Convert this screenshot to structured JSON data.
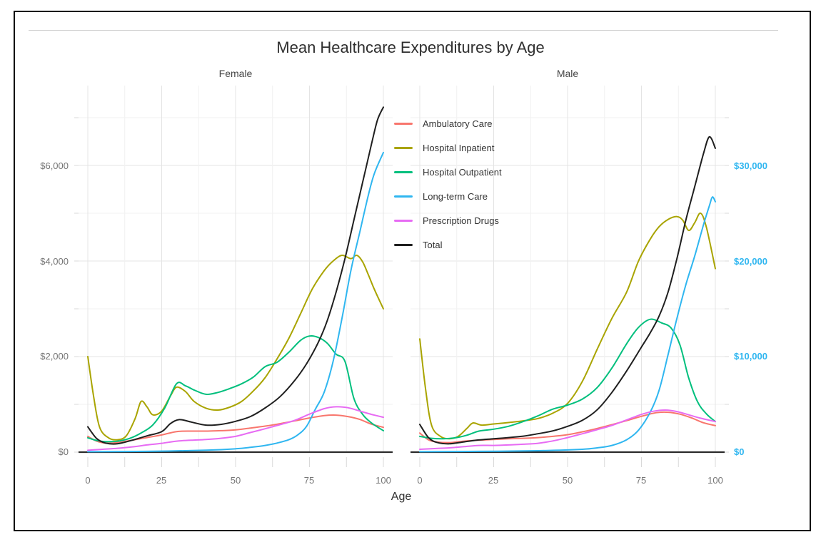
{
  "figure": {
    "title": "Mean Healthcare Expenditures by Age",
    "facet_female": "Female",
    "facet_male": "Male"
  },
  "chart_data": {
    "type": "line",
    "title": "Mean Healthcare Expenditures by Age",
    "xlabel": "Age",
    "grid": "on",
    "legend_position": "center-between-facets",
    "x_range": [
      -3.2,
      103.2
    ],
    "x_tick_labels": [
      "0",
      "25",
      "50",
      "75",
      "100"
    ],
    "x_ticks_major": [
      0,
      25,
      50,
      75,
      100
    ],
    "x_ticks_minor": [
      12.5,
      37.5,
      62.5,
      87.5
    ],
    "left_axis": {
      "range": [
        0,
        7700
      ],
      "ticks": [
        {
          "value": 0,
          "label": "$0"
        },
        {
          "value": 2000,
          "label": "$2,000"
        },
        {
          "value": 4000,
          "label": "$4,000"
        },
        {
          "value": 6000,
          "label": "$6,000"
        }
      ],
      "minor_values": [
        1000,
        3000,
        5000,
        7000
      ],
      "label_color": "#757575"
    },
    "right_axis": {
      "range": [
        0,
        38500
      ],
      "scale_vs_left": 5,
      "color": "#2fb6f0",
      "ticks": [
        {
          "value": 0,
          "label": "$0"
        },
        {
          "value": 10000,
          "label": "$10,000"
        },
        {
          "value": 20000,
          "label": "$20,000"
        },
        {
          "value": 30000,
          "label": "$30,000"
        }
      ]
    },
    "style": {
      "grid_major": "#e4e4e4",
      "grid_minor": "#f1f1f1",
      "axis_line": "#2b2b2b",
      "tick_color": "#d9d9d9"
    },
    "series_meta": [
      {
        "key": "amb",
        "name": "Ambulatory Care",
        "color": "#F8766D",
        "axis": "left"
      },
      {
        "key": "inpt",
        "name": "Hospital Inpatient",
        "color": "#A9A400",
        "axis": "left"
      },
      {
        "key": "outp",
        "name": "Hospital Outpatient",
        "color": "#00BF7D",
        "axis": "left"
      },
      {
        "key": "ltc",
        "name": "Long-term Care",
        "color": "#2fb6f0",
        "axis": "right"
      },
      {
        "key": "rx",
        "name": "Prescription Drugs",
        "color": "#E76BF3",
        "axis": "left"
      },
      {
        "key": "total",
        "name": "Total",
        "color": "#1f1f1f",
        "axis": "left"
      }
    ],
    "facets": [
      {
        "name": "Female",
        "series": {
          "amb": {
            "x": [
              0,
              3,
              6,
              10,
              15,
              20,
              25,
              30,
              35,
              40,
              45,
              50,
              55,
              60,
              65,
              70,
              75,
              80,
              84,
              88,
              92,
              96,
              100
            ],
            "y": [
              330,
              230,
              190,
              200,
              250,
              305,
              360,
              430,
              440,
              440,
              450,
              465,
              505,
              545,
              595,
              655,
              715,
              765,
              775,
              745,
              685,
              585,
              520
            ]
          },
          "inpt": {
            "x": [
              0,
              2,
              4,
              7,
              10,
              13,
              16,
              18,
              20,
              22,
              25,
              28,
              30,
              33,
              36,
              40,
              44,
              48,
              52,
              56,
              60,
              64,
              68,
              72,
              76,
              80,
              83,
              86,
              89,
              91,
              93,
              95,
              97,
              100
            ],
            "y": [
              2000,
              1150,
              520,
              300,
              260,
              340,
              700,
              1060,
              950,
              780,
              860,
              1180,
              1360,
              1270,
              1060,
              920,
              880,
              940,
              1060,
              1280,
              1560,
              1950,
              2380,
              2900,
              3420,
              3800,
              4000,
              4120,
              4050,
              4120,
              3980,
              3700,
              3400,
              3000
            ]
          },
          "outp": {
            "x": [
              0,
              3,
              6,
              10,
              14,
              18,
              22,
              26,
              30,
              33,
              36,
              40,
              44,
              48,
              52,
              56,
              60,
              64,
              68,
              72,
              75,
              78,
              81,
              84,
              87,
              90,
              93,
              96,
              100
            ],
            "y": [
              300,
              245,
              220,
              230,
              285,
              400,
              570,
              920,
              1430,
              1390,
              1300,
              1210,
              1250,
              1330,
              1430,
              1570,
              1790,
              1880,
              2090,
              2340,
              2430,
              2400,
              2280,
              2050,
              1900,
              1130,
              790,
              610,
              450
            ]
          },
          "ltc": {
            "x": [
              0,
              20,
              40,
              50,
              55,
              60,
              64,
              68,
              71,
              74,
              77,
              80,
              83,
              86,
              89,
              92,
              95,
              97,
              100
            ],
            "y": [
              50,
              80,
              200,
              350,
              500,
              700,
              950,
              1300,
              1800,
              2700,
              4500,
              6300,
              9500,
              14000,
              19000,
              23000,
              27000,
              29200,
              31350
            ]
          },
          "rx": {
            "x": [
              0,
              5,
              10,
              15,
              20,
              25,
              30,
              35,
              40,
              45,
              50,
              55,
              60,
              65,
              70,
              75,
              80,
              84,
              88,
              92,
              96,
              100
            ],
            "y": [
              40,
              60,
              80,
              110,
              150,
              185,
              230,
              250,
              265,
              290,
              330,
              410,
              490,
              575,
              665,
              795,
              910,
              950,
              930,
              860,
              790,
              730
            ]
          },
          "total": {
            "x": [
              0,
              3,
              6,
              10,
              15,
              20,
              25,
              28,
              31,
              35,
              40,
              45,
              50,
              55,
              60,
              65,
              70,
              74,
              78,
              81,
              84,
              87,
              90,
              93,
              96,
              98,
              100
            ],
            "y": [
              530,
              285,
              190,
              175,
              250,
              340,
              430,
              600,
              680,
              630,
              565,
              580,
              645,
              745,
              925,
              1160,
              1500,
              1850,
              2300,
              2750,
              3350,
              4050,
              4850,
              5650,
              6450,
              6950,
              7220
            ]
          }
        }
      },
      {
        "name": "Male",
        "series": {
          "amb": {
            "x": [
              0,
              3,
              6,
              10,
              15,
              20,
              25,
              30,
              35,
              40,
              45,
              50,
              55,
              60,
              65,
              70,
              75,
              80,
              84,
              88,
              92,
              96,
              100
            ],
            "y": [
              400,
              255,
              210,
              200,
              230,
              250,
              265,
              280,
              290,
              305,
              330,
              365,
              425,
              495,
              575,
              660,
              750,
              825,
              835,
              795,
              715,
              615,
              555
            ]
          },
          "inpt": {
            "x": [
              0,
              2,
              4,
              7,
              10,
              13,
              16,
              18,
              21,
              25,
              30,
              35,
              40,
              45,
              50,
              55,
              60,
              65,
              70,
              74,
              78,
              81,
              84,
              87,
              89,
              91,
              93,
              95,
              97,
              100
            ],
            "y": [
              2370,
              1300,
              560,
              330,
              280,
              330,
              500,
              610,
              565,
              590,
              620,
              655,
              705,
              815,
              1020,
              1480,
              2150,
              2800,
              3350,
              4000,
              4460,
              4720,
              4870,
              4930,
              4850,
              4640,
              4800,
              5000,
              4700,
              3840
            ]
          },
          "outp": {
            "x": [
              0,
              4,
              8,
              12,
              16,
              20,
              25,
              30,
              35,
              40,
              45,
              50,
              55,
              60,
              65,
              70,
              74,
              78,
              82,
              85,
              88,
              91,
              94,
              97,
              100
            ],
            "y": [
              330,
              290,
              280,
              300,
              355,
              440,
              480,
              540,
              640,
              760,
              900,
              985,
              1110,
              1350,
              1760,
              2270,
              2610,
              2780,
              2700,
              2600,
              2250,
              1550,
              1050,
              800,
              640
            ]
          },
          "ltc": {
            "x": [
              0,
              20,
              40,
              55,
              60,
              65,
              70,
              74,
              78,
              81,
              84,
              87,
              90,
              93,
              96,
              98,
              99,
              100
            ],
            "y": [
              50,
              80,
              150,
              300,
              450,
              700,
              1300,
              2300,
              4200,
              6500,
              10200,
              14000,
              17500,
              20500,
              23800,
              25800,
              26700,
              26200
            ]
          },
          "rx": {
            "x": [
              0,
              5,
              10,
              15,
              20,
              25,
              30,
              35,
              40,
              45,
              50,
              55,
              60,
              65,
              70,
              75,
              79,
              83,
              87,
              91,
              95,
              100
            ],
            "y": [
              60,
              75,
              90,
              115,
              140,
              140,
              150,
              165,
              185,
              235,
              305,
              385,
              470,
              560,
              675,
              790,
              855,
              880,
              850,
              780,
              710,
              640
            ]
          },
          "total": {
            "x": [
              0,
              3,
              6,
              10,
              15,
              20,
              25,
              30,
              35,
              40,
              45,
              50,
              55,
              60,
              65,
              70,
              75,
              78,
              81,
              84,
              87,
              90,
              93,
              96,
              98,
              100
            ],
            "y": [
              580,
              300,
              200,
              175,
              215,
              255,
              280,
              305,
              335,
              385,
              445,
              540,
              665,
              885,
              1250,
              1700,
              2200,
              2500,
              2850,
              3350,
              4050,
              4850,
              5550,
              6250,
              6600,
              6360
            ]
          }
        }
      }
    ]
  }
}
